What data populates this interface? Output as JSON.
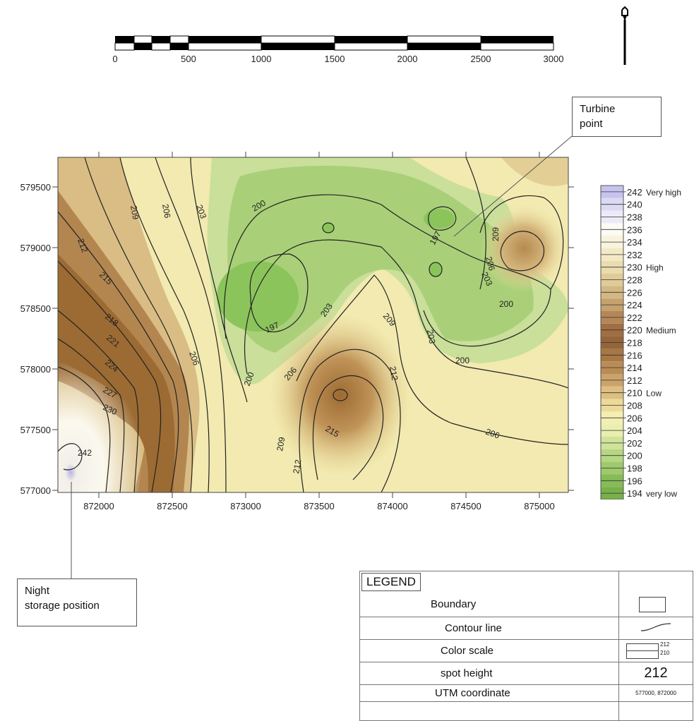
{
  "scale_bar": {
    "labels": [
      "0",
      "500",
      "1000",
      "1500",
      "2000",
      "2500",
      "3000"
    ]
  },
  "north_arrow": {
    "icon": "north-arrow-icon"
  },
  "map": {
    "y_ticks": [
      "579500",
      "579000",
      "578500",
      "578000",
      "577500",
      "577000"
    ],
    "x_ticks": [
      "872000",
      "872500",
      "873000",
      "873500",
      "874000",
      "874500",
      "875000"
    ],
    "contour_labels": [
      "209",
      "206",
      "203",
      "200",
      "212",
      "215",
      "218",
      "221",
      "224",
      "227",
      "230",
      "242",
      "197",
      "203",
      "206",
      "200",
      "197",
      "209",
      "212",
      "215",
      "209",
      "212",
      "206",
      "206",
      "203",
      "200",
      "200",
      "203",
      "209",
      "206"
    ],
    "colors": {
      "green": "#8cc45c",
      "light_green": "#c9df9a",
      "yellow": "#f4f1b8",
      "tan": "#c9a86a",
      "brown": "#9c6b33",
      "white": "#fbf9ee",
      "violet": "#b9b6e4"
    }
  },
  "color_scale": {
    "levels": [
      {
        "value": "242",
        "label": "Very high",
        "color": "#c6c4ee"
      },
      {
        "value": "240",
        "label": "",
        "color": "#dcdaf2"
      },
      {
        "value": "238",
        "label": "",
        "color": "#eceaf6"
      },
      {
        "value": "236",
        "label": "",
        "color": "#fbfaf4"
      },
      {
        "value": "234",
        "label": "",
        "color": "#f8f3dc"
      },
      {
        "value": "232",
        "label": "",
        "color": "#f3e9c6"
      },
      {
        "value": "230",
        "label": "High",
        "color": "#ebdcb0"
      },
      {
        "value": "228",
        "label": "",
        "color": "#e0cb98"
      },
      {
        "value": "226",
        "label": "",
        "color": "#d3b884"
      },
      {
        "value": "224",
        "label": "",
        "color": "#c5a16d"
      },
      {
        "value": "222",
        "label": "",
        "color": "#b48758"
      },
      {
        "value": "220",
        "label": "Medium",
        "color": "#a06e42"
      },
      {
        "value": "218",
        "label": "",
        "color": "#94653a"
      },
      {
        "value": "216",
        "label": "",
        "color": "#a77744"
      },
      {
        "value": "214",
        "label": "",
        "color": "#b98c55"
      },
      {
        "value": "212",
        "label": "",
        "color": "#cba36a"
      },
      {
        "value": "210",
        "label": "Low",
        "color": "#ddbf80"
      },
      {
        "value": "208",
        "label": "",
        "color": "#ecda98"
      },
      {
        "value": "206",
        "label": "",
        "color": "#f5eeb2"
      },
      {
        "value": "204",
        "label": "",
        "color": "#e8efb0"
      },
      {
        "value": "202",
        "label": "",
        "color": "#cfe39a"
      },
      {
        "value": "200",
        "label": "",
        "color": "#b6d682"
      },
      {
        "value": "198",
        "label": "",
        "color": "#9ec96c"
      },
      {
        "value": "196",
        "label": "",
        "color": "#86bb58"
      },
      {
        "value": "194",
        "label": "very low",
        "color": "#78b04a"
      }
    ]
  },
  "callouts": {
    "turbine": "Turbine\npoint",
    "night_storage_line1": "Night",
    "night_storage_line2": "storage position"
  },
  "legend": {
    "title": "LEGEND",
    "rows": [
      {
        "label": "Boundary"
      },
      {
        "label": "Contour line"
      },
      {
        "label": "Color scale",
        "sample_top": "212",
        "sample_bottom": "210"
      },
      {
        "label": "spot height",
        "sample": "212"
      },
      {
        "label": "UTM coordinate",
        "sample": "577000, 872000"
      }
    ]
  }
}
